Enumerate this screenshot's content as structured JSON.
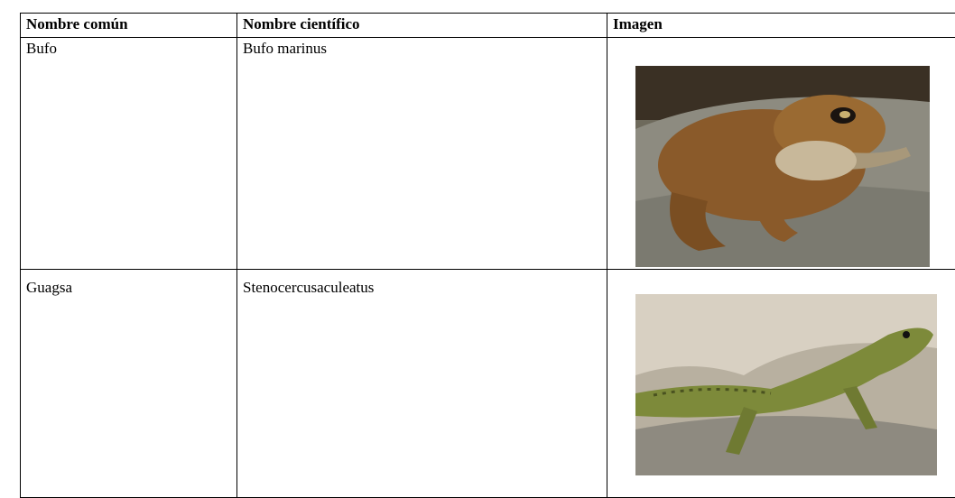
{
  "table": {
    "header": [
      "Nombre común",
      "Nombre científico",
      "Imagen"
    ],
    "rows": [
      [
        "Bufo",
        "Bufo marinus"
      ],
      [
        "Guagsa",
        "Stenocercusaculeatus"
      ]
    ]
  }
}
